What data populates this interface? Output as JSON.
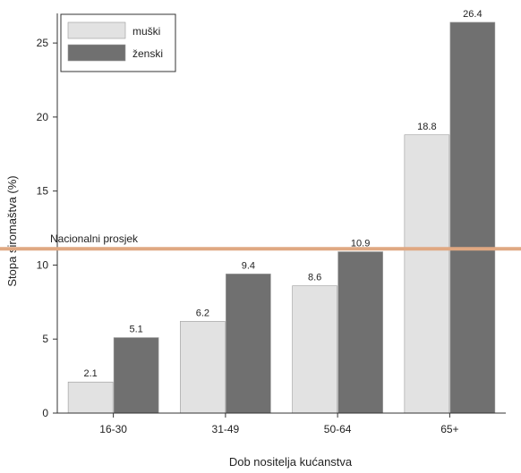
{
  "chart_data": {
    "type": "bar",
    "categories": [
      "16-30",
      "31-49",
      "50-64",
      "65+"
    ],
    "series": [
      {
        "name": "muški",
        "values": [
          2.1,
          6.2,
          8.6,
          18.8
        ],
        "labels": [
          "2.1",
          "6.2",
          "8.6",
          "18.8"
        ],
        "color": "#e2e2e2"
      },
      {
        "name": "ženski",
        "values": [
          5.1,
          9.4,
          10.9,
          26.4
        ],
        "labels": [
          "5.1",
          "9.4",
          "10.9",
          "26.4"
        ],
        "color": "#707070"
      }
    ],
    "xlabel": "Dob nositelja kućanstva",
    "ylabel": "Stopa siromaštva (%)",
    "ylim": [
      0,
      27
    ],
    "yticks": [
      0,
      5,
      10,
      15,
      20,
      25
    ],
    "reference_line": {
      "label": "Nacionalni prosjek",
      "value": 11.1,
      "color": "#e0a882"
    },
    "legend_position": "top-left",
    "grid": false
  }
}
